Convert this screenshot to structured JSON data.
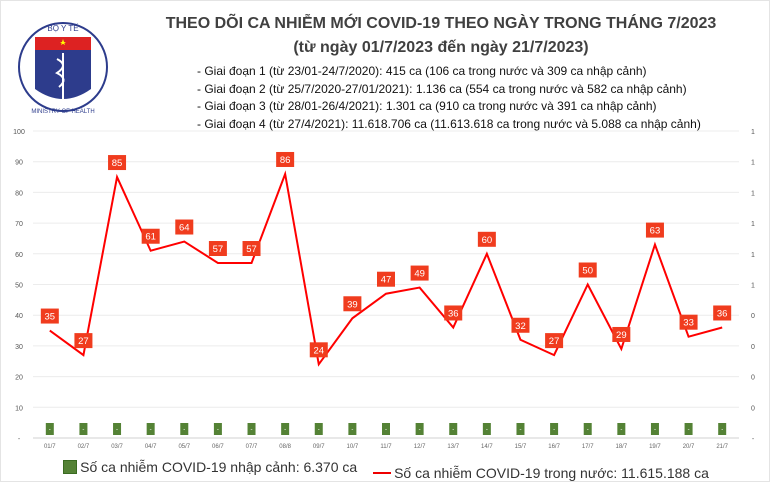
{
  "header": {
    "logo_text_top": "BỘ Y TẾ",
    "logo_text_bottom": "MINISTRY OF HEALTH",
    "title": "THEO DÕI CA NHIỄM MỚI COVID-19 THEO NGÀY TRONG THÁNG 7/2023",
    "subtitle": "(từ ngày 01/7/2023 đến ngày 21/7/2023)",
    "notes": [
      "- Giai đoạn 1 (từ 23/01-24/7/2020): 415 ca (106 ca trong nước và 309 ca nhập cảnh)",
      "- Giai đoạn 2 (từ 25/7/2020-27/01/2021): 1.136 ca (554 ca trong nước và 582 ca nhập cảnh)",
      "- Giai đoạn 3 (từ 28/01-26/4/2021): 1.301 ca (910 ca trong nước và 391 ca nhập cảnh)",
      "- Giai đoạn 4 (từ 27/4/2021): 11.618.706 ca (11.613.618 ca trong nước và 5.088 ca nhập cảnh)"
    ]
  },
  "chart_data": {
    "type": "bar+line",
    "categories": [
      "01/7",
      "02/7",
      "03/7",
      "04/7",
      "05/7",
      "06/7",
      "07/7",
      "08/8",
      "09/7",
      "10/7",
      "11/7",
      "12/7",
      "13/7",
      "14/7",
      "15/7",
      "16/7",
      "17/7",
      "18/7",
      "19/7",
      "20/7",
      "21/7"
    ],
    "series": [
      {
        "name": "Số ca nhiễm COVID-19 nhập cảnh: 6.370 ca",
        "type": "bar",
        "axis": "right",
        "color": "#548235",
        "labels": [
          "-",
          "-",
          "-",
          "-",
          "-",
          "-",
          "-",
          "-",
          "-",
          "-",
          "-",
          "-",
          "-",
          "-",
          "-",
          "-",
          "-",
          "-",
          "-",
          "-",
          "-"
        ]
      },
      {
        "name": "Số ca nhiễm COVID-19 trong nước: 11.615.188 ca",
        "type": "line",
        "axis": "left",
        "color": "#ff0000",
        "label_color": "#f03c1e",
        "values": [
          35,
          27,
          85,
          61,
          64,
          57,
          57,
          86,
          24,
          39,
          47,
          49,
          36,
          60,
          32,
          27,
          50,
          29,
          63,
          33,
          36
        ]
      }
    ],
    "y_left": {
      "ylim": [
        0,
        100
      ],
      "ticks": [
        "-",
        "10",
        "20",
        "30",
        "40",
        "50",
        "60",
        "70",
        "80",
        "90",
        "100"
      ]
    },
    "y_right": {
      "ticks": [
        "-",
        "0",
        "0",
        "0",
        "0",
        "1",
        "1",
        "1",
        "1",
        "1",
        "1"
      ]
    },
    "grid": true,
    "legend": "bottom"
  }
}
